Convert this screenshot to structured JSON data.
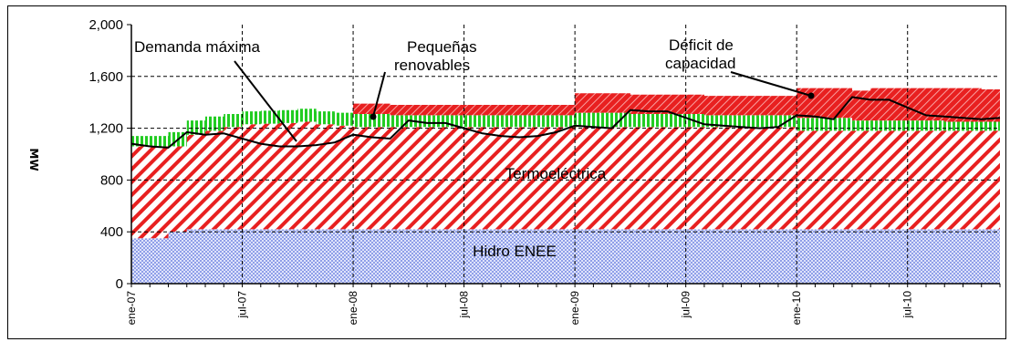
{
  "chart_data": {
    "type": "area",
    "ylabel": "MW",
    "ylim": [
      0,
      2000
    ],
    "yticks": [
      "0",
      "400",
      "800",
      "1,200",
      "1,600",
      "2,000"
    ],
    "ytick_values": [
      0,
      400,
      800,
      1200,
      1600,
      2000
    ],
    "x_tick_labels": [
      "ene-07",
      "jul-07",
      "ene-08",
      "jul-08",
      "ene-09",
      "jul-09",
      "ene-10",
      "jul-10"
    ],
    "x_tick_months": [
      0,
      6,
      12,
      18,
      24,
      30,
      36,
      42
    ],
    "grid": "dashed-horizontal-and-vertical",
    "legend": "none",
    "series": [
      {
        "name": "Hidro ENEE",
        "color": "#9aa8e8",
        "values": [
          350,
          350,
          400,
          420,
          420,
          420,
          420,
          420,
          420,
          420,
          420,
          420,
          420,
          420,
          420,
          420,
          420,
          420,
          420,
          420,
          420,
          420,
          420,
          420,
          420,
          420,
          420,
          420,
          420,
          420,
          420,
          420,
          420,
          420,
          420,
          420,
          420,
          420,
          420,
          420,
          420,
          420,
          420,
          420,
          420,
          420,
          420,
          420
        ]
      },
      {
        "name": "Termoeléctrica",
        "color": "#e82020",
        "values": [
          710,
          710,
          660,
          730,
          760,
          790,
          810,
          815,
          820,
          830,
          810,
          800,
          790,
          790,
          790,
          790,
          790,
          790,
          790,
          790,
          790,
          790,
          790,
          790,
          790,
          790,
          790,
          790,
          790,
          790,
          790,
          790,
          790,
          790,
          790,
          790,
          760,
          760,
          760,
          760,
          760,
          760,
          760,
          760,
          760,
          760,
          760,
          760
        ]
      },
      {
        "name": "Pequeñas renovables",
        "color": "#22cc22",
        "values": [
          80,
          80,
          110,
          110,
          110,
          100,
          100,
          100,
          100,
          100,
          100,
          100,
          100,
          100,
          90,
          90,
          90,
          90,
          90,
          90,
          90,
          90,
          90,
          90,
          110,
          110,
          110,
          100,
          100,
          100,
          100,
          90,
          90,
          90,
          90,
          90,
          100,
          100,
          100,
          80,
          80,
          80,
          80,
          80,
          70,
          70,
          70,
          70
        ]
      },
      {
        "name": "Déficit de capacidad",
        "color": "#e82020",
        "values": [
          0,
          0,
          0,
          0,
          0,
          0,
          0,
          0,
          0,
          0,
          0,
          0,
          80,
          80,
          80,
          80,
          80,
          80,
          80,
          80,
          80,
          80,
          80,
          80,
          150,
          150,
          150,
          150,
          150,
          150,
          150,
          150,
          150,
          150,
          150,
          150,
          230,
          230,
          230,
          230,
          250,
          250,
          250,
          250,
          260,
          260,
          250,
          240
        ]
      }
    ],
    "demanda_maxima": {
      "name": "Demanda máxima",
      "color": "#000000",
      "values": [
        1080,
        1060,
        1050,
        1170,
        1150,
        1160,
        1120,
        1080,
        1060,
        1060,
        1070,
        1090,
        1150,
        1130,
        1120,
        1260,
        1240,
        1240,
        1200,
        1160,
        1140,
        1130,
        1140,
        1170,
        1220,
        1210,
        1200,
        1340,
        1330,
        1330,
        1280,
        1230,
        1220,
        1210,
        1200,
        1210,
        1300,
        1290,
        1270,
        1440,
        1420,
        1420,
        1360,
        1300,
        1290,
        1280,
        1270,
        1280
      ]
    },
    "annotations": [
      {
        "id": "demanda",
        "text": "Demanda máxima"
      },
      {
        "id": "pequenas_1",
        "text": "Pequeñas"
      },
      {
        "id": "pequenas_2",
        "text": "renovables"
      },
      {
        "id": "deficit_1",
        "text": "Déficit de"
      },
      {
        "id": "deficit_2",
        "text": "capacidad"
      },
      {
        "id": "termo",
        "text": "Termoeléctrica"
      },
      {
        "id": "hidro",
        "text": "Hidro ENEE"
      }
    ]
  }
}
